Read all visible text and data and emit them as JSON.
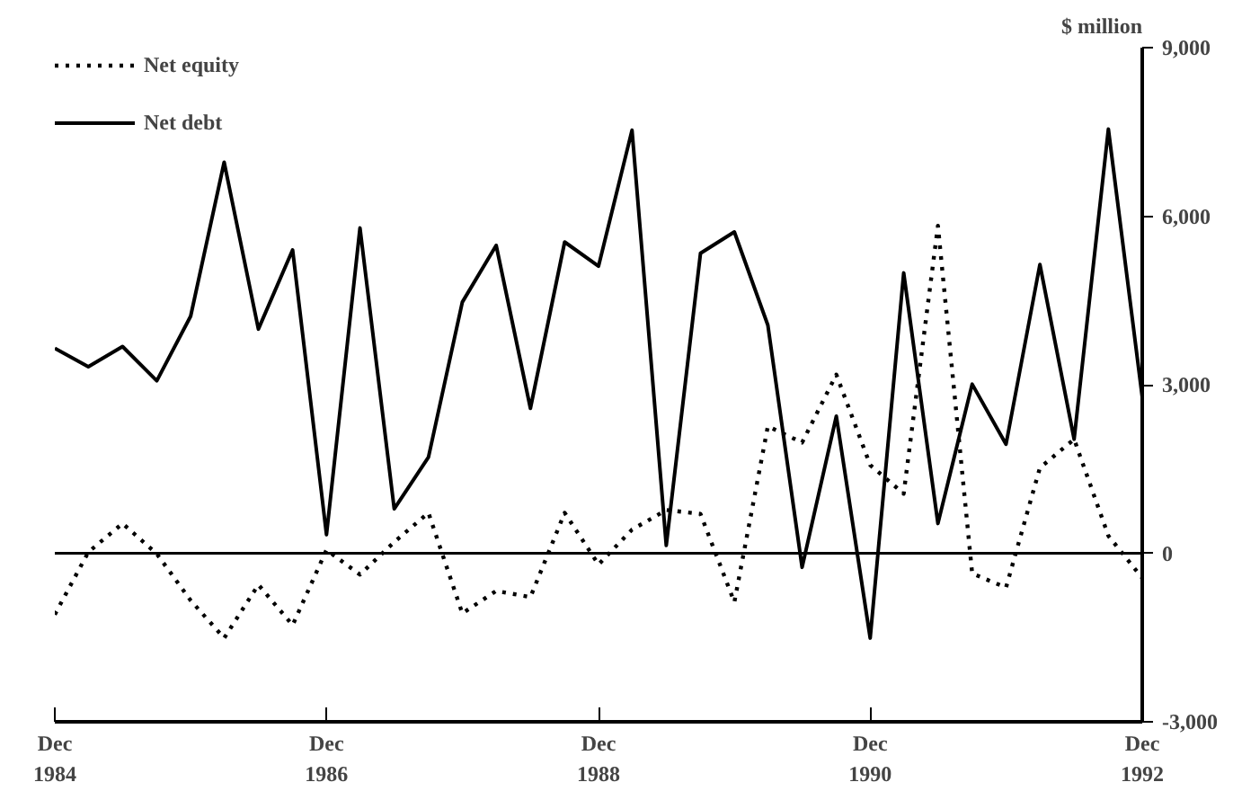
{
  "chart_data": {
    "type": "line",
    "ylabel": "$ million",
    "x": [
      "1984-12",
      "1985-03",
      "1985-06",
      "1985-09",
      "1985-12",
      "1986-03",
      "1986-06",
      "1986-09",
      "1986-12",
      "1987-03",
      "1987-06",
      "1987-09",
      "1987-12",
      "1988-03",
      "1988-06",
      "1988-09",
      "1988-12",
      "1989-03",
      "1989-06",
      "1989-09",
      "1989-12",
      "1990-03",
      "1990-06",
      "1990-09",
      "1990-12",
      "1991-03",
      "1991-06",
      "1991-09",
      "1991-12",
      "1992-03",
      "1992-06",
      "1992-09",
      "1992-12"
    ],
    "series": [
      {
        "name": "Net equity",
        "color": "#000000",
        "line_style": "dotted",
        "values": [
          -1090,
          20,
          530,
          -10,
          -840,
          -1510,
          -560,
          -1280,
          60,
          -380,
          200,
          720,
          -1070,
          -670,
          -780,
          720,
          -200,
          420,
          770,
          700,
          -870,
          2260,
          1970,
          3180,
          1570,
          1060,
          5830,
          -360,
          -610,
          1520,
          2030,
          310,
          -440
        ]
      },
      {
        "name": "Net debt",
        "color": "#000000",
        "line_style": "solid",
        "values": [
          3650,
          3320,
          3680,
          3070,
          4220,
          6960,
          3990,
          5400,
          330,
          5790,
          790,
          1710,
          4470,
          5480,
          2580,
          5540,
          5110,
          7530,
          140,
          5340,
          5720,
          4060,
          -250,
          2440,
          -1510,
          4990,
          530,
          3010,
          1940,
          5140,
          2030,
          7550,
          2780
        ]
      }
    ],
    "xlim": [
      "1984-12",
      "1992-12"
    ],
    "xticks": [
      {
        "value": "1984-12",
        "label": "Dec\n1984"
      },
      {
        "value": "1986-12",
        "label": "Dec\n1986"
      },
      {
        "value": "1988-12",
        "label": "Dec\n1988"
      },
      {
        "value": "1990-12",
        "label": "Dec\n1990"
      },
      {
        "value": "1992-12",
        "label": "Dec\n1992"
      }
    ],
    "ylim": [
      -3000,
      9000
    ],
    "yticks": [
      {
        "value": -3000,
        "label": "-3,000"
      },
      0,
      {
        "value": 3000,
        "label": "3,000"
      },
      {
        "value": 6000,
        "label": "6,000"
      },
      {
        "value": 9000,
        "label": "9,000"
      }
    ],
    "ref_lines": [
      {
        "axis": "y",
        "value": 0,
        "color": "#000000"
      }
    ],
    "legend": "top left",
    "grid": false,
    "marker": "none"
  }
}
